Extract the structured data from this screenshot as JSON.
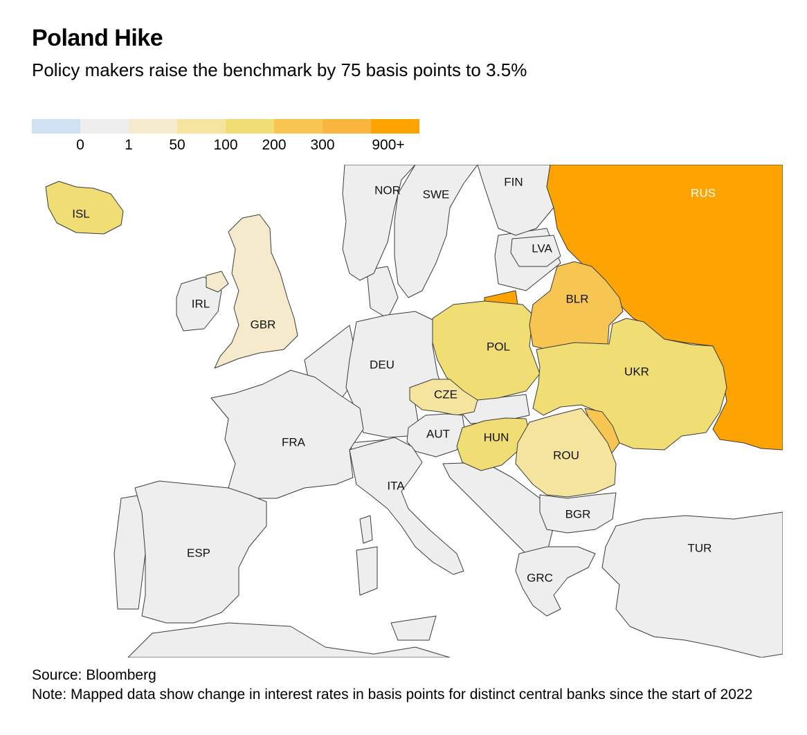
{
  "title": "Poland Hike",
  "subtitle": "Policy makers raise the benchmark by 75 basis points to 3.5%",
  "legend": {
    "colors": [
      "#cfe2f3",
      "#eeeeee",
      "#f5eacb",
      "#f5e49e",
      "#f0dd74",
      "#f6c552",
      "#f8b641",
      "#fda402"
    ],
    "ticks": [
      "0",
      "1",
      "50",
      "100",
      "200",
      "300",
      "900+"
    ]
  },
  "countries": [
    {
      "code": "ISL",
      "label": "ISL",
      "bin": 4
    },
    {
      "code": "NOR",
      "label": "NOR",
      "bin": 1
    },
    {
      "code": "SWE",
      "label": "SWE",
      "bin": 1
    },
    {
      "code": "FIN",
      "label": "FIN",
      "bin": 1
    },
    {
      "code": "RUS",
      "label": "RUS",
      "bin": 7
    },
    {
      "code": "LVA",
      "label": "LVA",
      "bin": 1
    },
    {
      "code": "IRL",
      "label": "IRL",
      "bin": 1
    },
    {
      "code": "GBR",
      "label": "GBR",
      "bin": 2
    },
    {
      "code": "BLR",
      "label": "BLR",
      "bin": 5
    },
    {
      "code": "POL",
      "label": "POL",
      "bin": 4
    },
    {
      "code": "DEU",
      "label": "DEU",
      "bin": 1
    },
    {
      "code": "UKR",
      "label": "UKR",
      "bin": 4
    },
    {
      "code": "CZE",
      "label": "CZE",
      "bin": 3
    },
    {
      "code": "AUT",
      "label": "AUT",
      "bin": 1
    },
    {
      "code": "HUN",
      "label": "HUN",
      "bin": 4
    },
    {
      "code": "FRA",
      "label": "FRA",
      "bin": 1
    },
    {
      "code": "ROU",
      "label": "ROU",
      "bin": 3
    },
    {
      "code": "ITA",
      "label": "ITA",
      "bin": 1
    },
    {
      "code": "BGR",
      "label": "BGR",
      "bin": 1
    },
    {
      "code": "TUR",
      "label": "TUR",
      "bin": 1
    },
    {
      "code": "ESP",
      "label": "ESP",
      "bin": 1
    },
    {
      "code": "GRC",
      "label": "GRC",
      "bin": 1
    }
  ],
  "source": "Source: Bloomberg",
  "note": "Note: Mapped data show change in interest rates in basis points for distinct central banks since the start of 2022"
}
